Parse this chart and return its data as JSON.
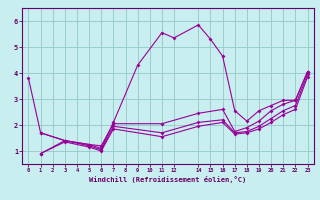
{
  "bg_color": "#c8eef0",
  "line_color": "#990099",
  "grid_color": "#99cccc",
  "xlabel": "Windchill (Refroidissement éolien,°C)",
  "xlabel_color": "#660066",
  "tick_color": "#660066",
  "spine_color": "#660066",
  "xlim": [
    -0.5,
    23.5
  ],
  "ylim": [
    0.5,
    6.5
  ],
  "yticks": [
    1,
    2,
    3,
    4,
    5,
    6
  ],
  "xticks": [
    0,
    1,
    2,
    3,
    4,
    5,
    6,
    7,
    8,
    9,
    10,
    11,
    12,
    14,
    15,
    16,
    17,
    18,
    19,
    20,
    21,
    22,
    23
  ],
  "xtick_labels": [
    "0",
    "1",
    "2",
    "3",
    "4",
    "5",
    "6",
    "7",
    "8",
    "9",
    "10",
    "11",
    "12",
    "14",
    "15",
    "16",
    "17",
    "18",
    "19",
    "20",
    "21",
    "22",
    "23"
  ],
  "lines": [
    {
      "x": [
        0,
        1,
        3,
        5,
        6,
        7,
        9,
        11,
        12,
        14,
        15,
        16,
        17,
        18,
        19,
        20,
        21,
        22,
        23
      ],
      "y": [
        3.8,
        1.7,
        1.4,
        1.25,
        1.1,
        2.1,
        4.3,
        5.55,
        5.35,
        5.85,
        5.3,
        4.65,
        2.55,
        2.15,
        2.55,
        2.75,
        2.95,
        2.95,
        4.05
      ]
    },
    {
      "x": [
        1,
        3,
        5,
        6,
        7,
        11,
        14,
        16,
        17,
        18,
        19,
        20,
        21,
        22,
        23
      ],
      "y": [
        1.7,
        1.4,
        1.25,
        1.2,
        2.05,
        2.05,
        2.45,
        2.6,
        1.75,
        1.9,
        2.15,
        2.55,
        2.8,
        2.95,
        4.05
      ]
    },
    {
      "x": [
        1,
        3,
        5,
        6,
        7,
        11,
        14,
        16,
        17,
        18,
        19,
        20,
        21,
        22,
        23
      ],
      "y": [
        0.9,
        1.4,
        1.2,
        1.05,
        1.95,
        1.7,
        2.1,
        2.2,
        1.7,
        1.75,
        1.95,
        2.25,
        2.55,
        2.75,
        3.95
      ]
    },
    {
      "x": [
        1,
        3,
        5,
        6,
        7,
        11,
        14,
        16,
        17,
        18,
        19,
        20,
        21,
        22,
        23
      ],
      "y": [
        0.9,
        1.35,
        1.15,
        1.0,
        1.85,
        1.55,
        1.95,
        2.1,
        1.65,
        1.7,
        1.85,
        2.1,
        2.4,
        2.6,
        3.85
      ]
    }
  ]
}
